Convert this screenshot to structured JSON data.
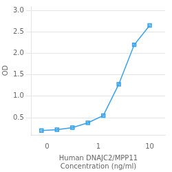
{
  "chart_data": {
    "type": "line",
    "x": [
      0.078,
      0.156,
      0.313,
      0.625,
      1.25,
      2.5,
      5,
      10
    ],
    "values": [
      0.2,
      0.22,
      0.27,
      0.38,
      0.55,
      1.28,
      2.2,
      2.65
    ],
    "xlabel": "Human DNAJC2/MPP11\nConcentration (ng/ml)",
    "ylabel": "OD",
    "log": "x",
    "xlim": [
      0.05,
      20
    ],
    "xticks": [
      {
        "value": 0.1,
        "label": "0"
      },
      1,
      10
    ],
    "ylim": [
      0.1,
      3.1
    ],
    "yticks": [
      0.5,
      {
        "value": 1.0,
        "label": "1.0"
      },
      1.5,
      {
        "value": 2.0,
        "label": "2.0"
      },
      2.5,
      {
        "value": 3.0,
        "label": "3.0"
      }
    ],
    "grid": "y",
    "marker": "square",
    "line_style": "solid"
  }
}
